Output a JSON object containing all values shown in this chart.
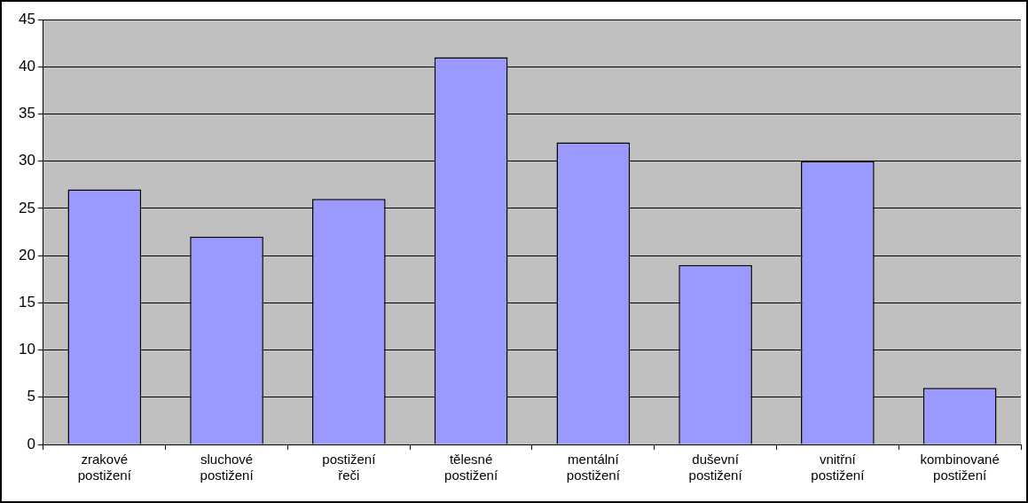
{
  "chart_data": {
    "type": "bar",
    "categories": [
      "zrakové postižení",
      "sluchové postižení",
      "postižení řeči",
      "tělesné postižení",
      "mentální postižení",
      "duševní postižení",
      "vnitřní postižení",
      "kombinované postižení"
    ],
    "values": [
      27,
      22,
      26,
      41,
      32,
      19,
      30,
      6
    ],
    "color": "#9999ff",
    "ylim": [
      0,
      45
    ],
    "yticks": [
      0,
      5,
      10,
      15,
      20,
      25,
      30,
      35,
      40,
      45
    ],
    "grid": "y"
  }
}
